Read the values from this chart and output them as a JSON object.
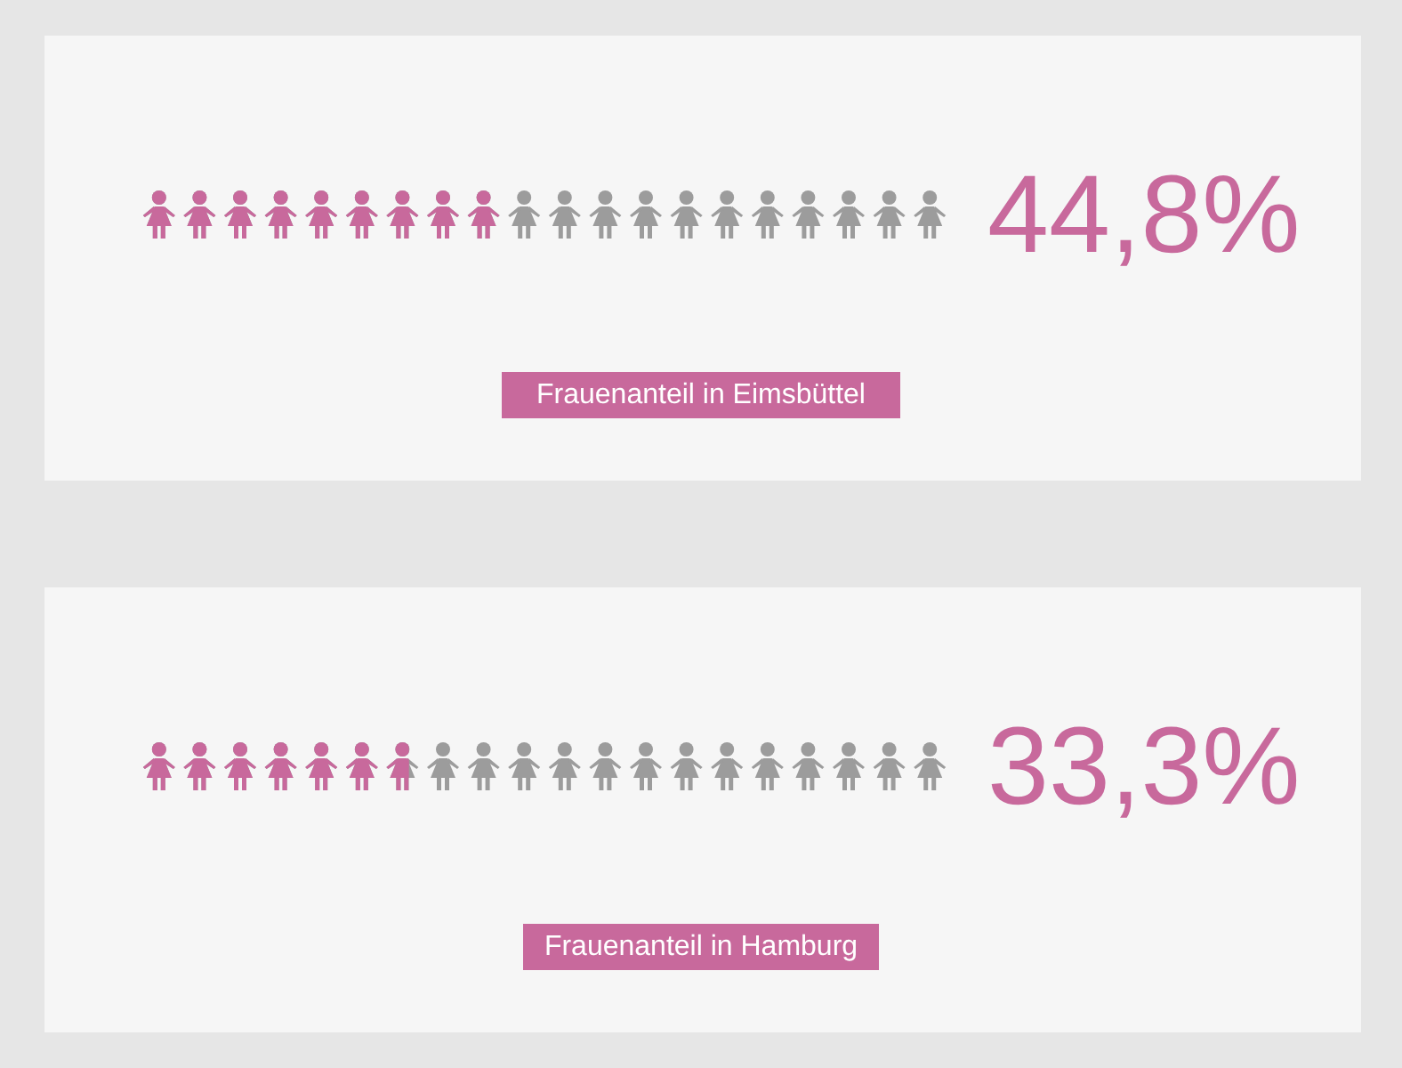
{
  "chart_data": [
    {
      "type": "other",
      "values": [
        44.8
      ],
      "value_labels": [
        "44,8%"
      ],
      "xlabel": "Frauenanteil in Eimsbüttel"
    },
    {
      "type": "other",
      "values": [
        33.3
      ],
      "value_labels": [
        "33,3%"
      ],
      "xlabel": "Frauenanteil in Hamburg"
    }
  ]
}
